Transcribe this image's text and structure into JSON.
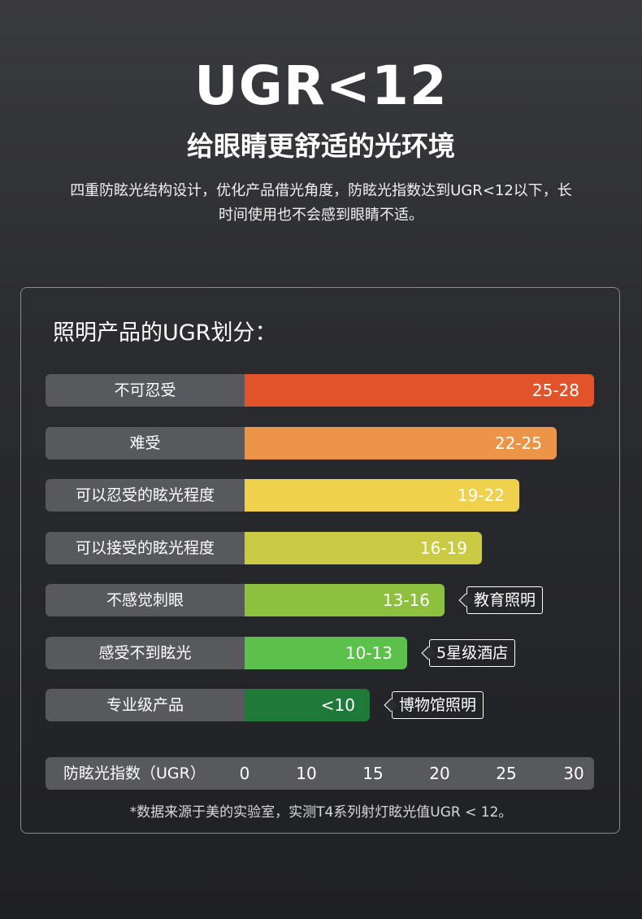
{
  "header": {
    "title": "UGR<12",
    "subtitle": "给眼睛更舒适的光环境",
    "description_line1": "四重防眩光结构设计，优化产品借光角度，防眩光指数达到UGR<12以下，长",
    "description_line2": "时间使用也不会感到眼睛不适。"
  },
  "panel": {
    "title": "照明产品的UGR划分：",
    "footnote": "*数据来源于美的实验室，实测T4系列射灯眩光值UGR < 12。"
  },
  "chart_data": {
    "type": "bar",
    "orientation": "horizontal",
    "categories": [
      "不可忍受",
      "难受",
      "可以忍受的眩光程度",
      "可以接受的眩光程度",
      "不感觉刺眼",
      "感受不到眩光",
      "专业级产品"
    ],
    "value_labels": [
      "25-28",
      "22-25",
      "19-22",
      "16-19",
      "13-16",
      "10-13",
      "<10"
    ],
    "values": [
      28,
      25,
      22,
      19,
      16,
      13,
      10
    ],
    "colors": [
      "#e2532b",
      "#ec9548",
      "#efd14e",
      "#cbca44",
      "#8ec03f",
      "#5bc14a",
      "#1f7a3a"
    ],
    "annotations": [
      "",
      "",
      "",
      "",
      "教育照明",
      "5星级酒店",
      "博物馆照明"
    ],
    "xlabel": "防眩光指数（UGR）",
    "xticks": [
      0,
      10,
      15,
      20,
      25,
      30
    ],
    "xlim": [
      0,
      30
    ]
  }
}
